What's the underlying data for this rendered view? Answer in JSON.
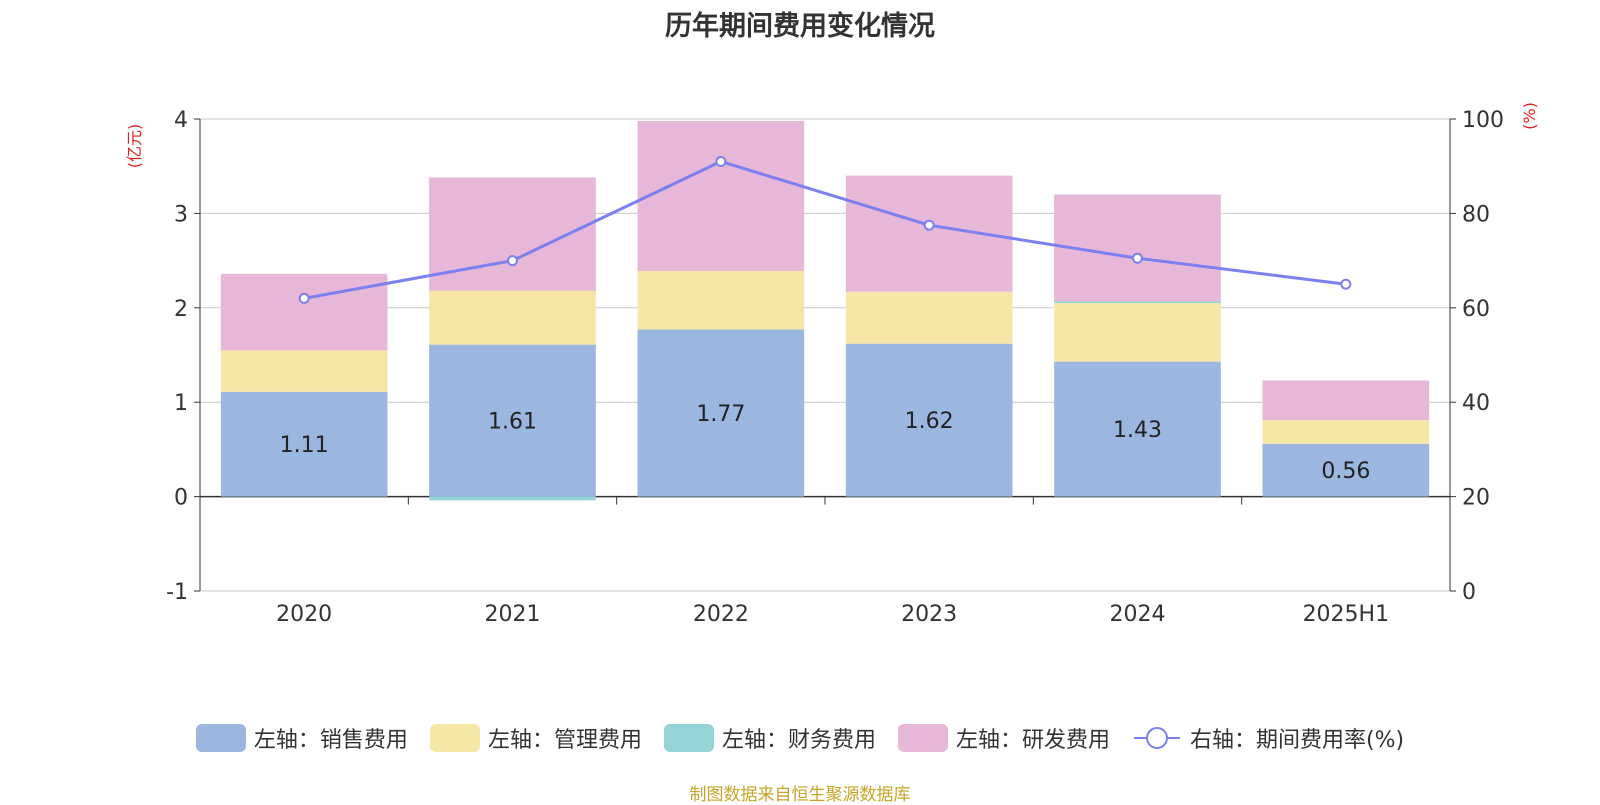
{
  "chart_data": {
    "type": "bar",
    "title": "历年期间费用变化情况",
    "categories": [
      "2020",
      "2021",
      "2022",
      "2023",
      "2024",
      "2025H1"
    ],
    "left_axis": {
      "unit_label": "(亿元)",
      "ylim": [
        -1,
        4
      ],
      "ticks": [
        "-1",
        "0",
        "1",
        "2",
        "3",
        "4"
      ]
    },
    "right_axis": {
      "unit_label": "(%)",
      "ylim": [
        0,
        100
      ],
      "ticks": [
        "0",
        "20",
        "40",
        "60",
        "80",
        "100"
      ]
    },
    "series": [
      {
        "name": "左轴：销售费用",
        "type": "bar",
        "stack": "left",
        "color": "#9bb7e0",
        "values": [
          1.11,
          1.61,
          1.77,
          1.62,
          1.43,
          0.56
        ],
        "labels": [
          "1.11",
          "1.61",
          "1.77",
          "1.62",
          "1.43",
          "0.56"
        ]
      },
      {
        "name": "左轴：管理费用",
        "type": "bar",
        "stack": "left",
        "color": "#f7e7a6",
        "values": [
          0.44,
          0.57,
          0.62,
          0.55,
          0.62,
          0.25
        ]
      },
      {
        "name": "左轴：财务费用",
        "type": "bar",
        "stack": "left",
        "color": "#96d3d6",
        "values": [
          0.0,
          -0.04,
          0.0,
          0.0,
          0.02,
          0.0
        ]
      },
      {
        "name": "左轴：研发费用",
        "type": "bar",
        "stack": "left",
        "color": "#e7b7d8",
        "values": [
          0.81,
          1.2,
          1.59,
          1.23,
          1.13,
          0.42
        ]
      },
      {
        "name": "右轴：期间费用率(%)",
        "type": "line",
        "axis": "right",
        "color": "#7b7ff0",
        "values": [
          62,
          70,
          91,
          77.5,
          70.5,
          65
        ]
      }
    ],
    "grid": true,
    "legend_position": "bottom"
  },
  "source_note": "制图数据来自恒生聚源数据库"
}
